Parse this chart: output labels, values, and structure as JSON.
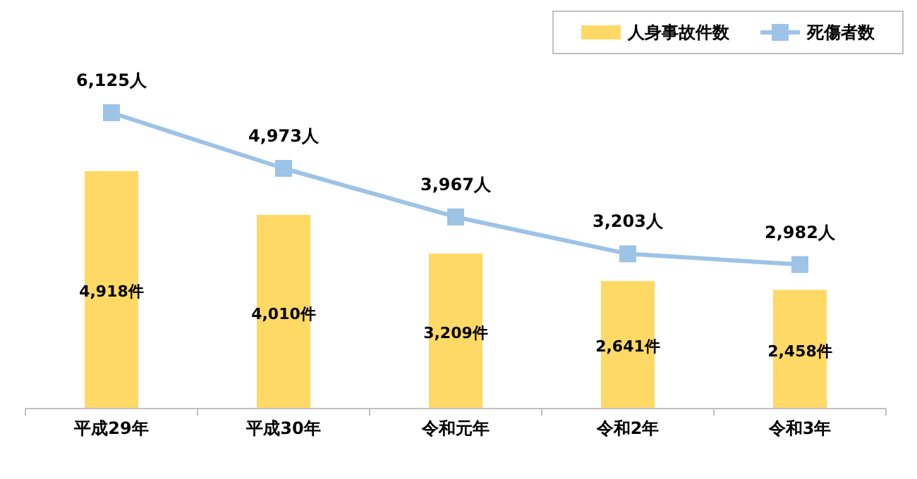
{
  "chart_data": {
    "type": "bar",
    "categories": [
      "平成29年",
      "平成30年",
      "令和元年",
      "令和2年",
      "令和3年"
    ],
    "series": [
      {
        "name": "人身事故件数",
        "color": "#ffd966",
        "values": [
          4918,
          4010,
          3209,
          2641,
          2458
        ],
        "value_labels": [
          "4,918件",
          "4,010件",
          "3,209件",
          "2,641件",
          "2,458件"
        ]
      },
      {
        "name": "死傷者数",
        "type": "line",
        "color": "#9dc3e6",
        "values": [
          6125,
          4973,
          3967,
          3203,
          2982
        ],
        "value_labels": [
          "6,125人",
          "4,973人",
          "3,967人",
          "3,203人",
          "2,982人"
        ]
      }
    ],
    "legend": "top right",
    "marker": "square",
    "line_style": "solid"
  }
}
